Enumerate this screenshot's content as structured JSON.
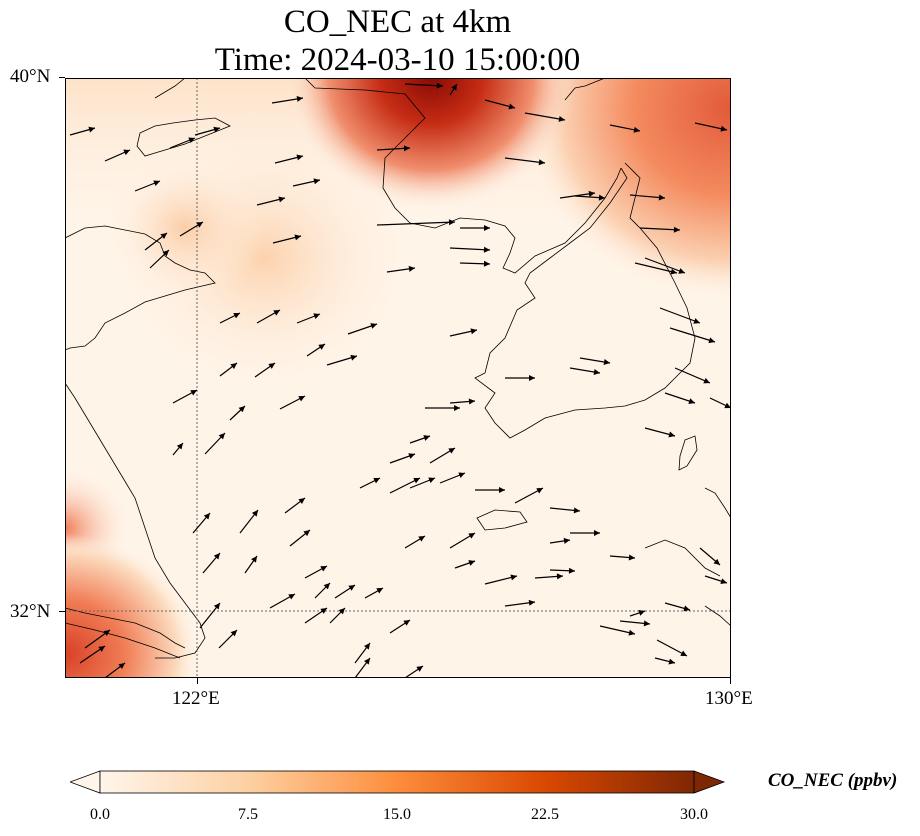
{
  "title_line1": "CO_NEC at 4km",
  "title_line2": "Time: 2024-03-10 15:00:00",
  "map": {
    "lon_range": [
      120,
      130
    ],
    "lat_range": [
      31,
      40
    ],
    "gridlines": {
      "longitudes": [
        122
      ],
      "latitudes": [
        32
      ]
    },
    "lat_ticks": [
      {
        "value": 40,
        "label": "40°N"
      },
      {
        "value": 32,
        "label": "32°N"
      }
    ],
    "lon_ticks": [
      {
        "value": 122,
        "label": "122°E"
      },
      {
        "value": 130,
        "label": "130°E"
      }
    ],
    "field_name": "CO_NEC",
    "wind_vectors": "shown"
  },
  "colorbar": {
    "label": "CO_NEC (ppbv)",
    "range": [
      0,
      30
    ],
    "ticks": [
      "0.0",
      "7.5",
      "15.0",
      "22.5",
      "30.0"
    ],
    "extend": "both",
    "colors": [
      "#fff5eb",
      "#fdd0a2",
      "#fd8d3c",
      "#d94801",
      "#7f2704"
    ],
    "cmap": "OrRd-like"
  }
}
